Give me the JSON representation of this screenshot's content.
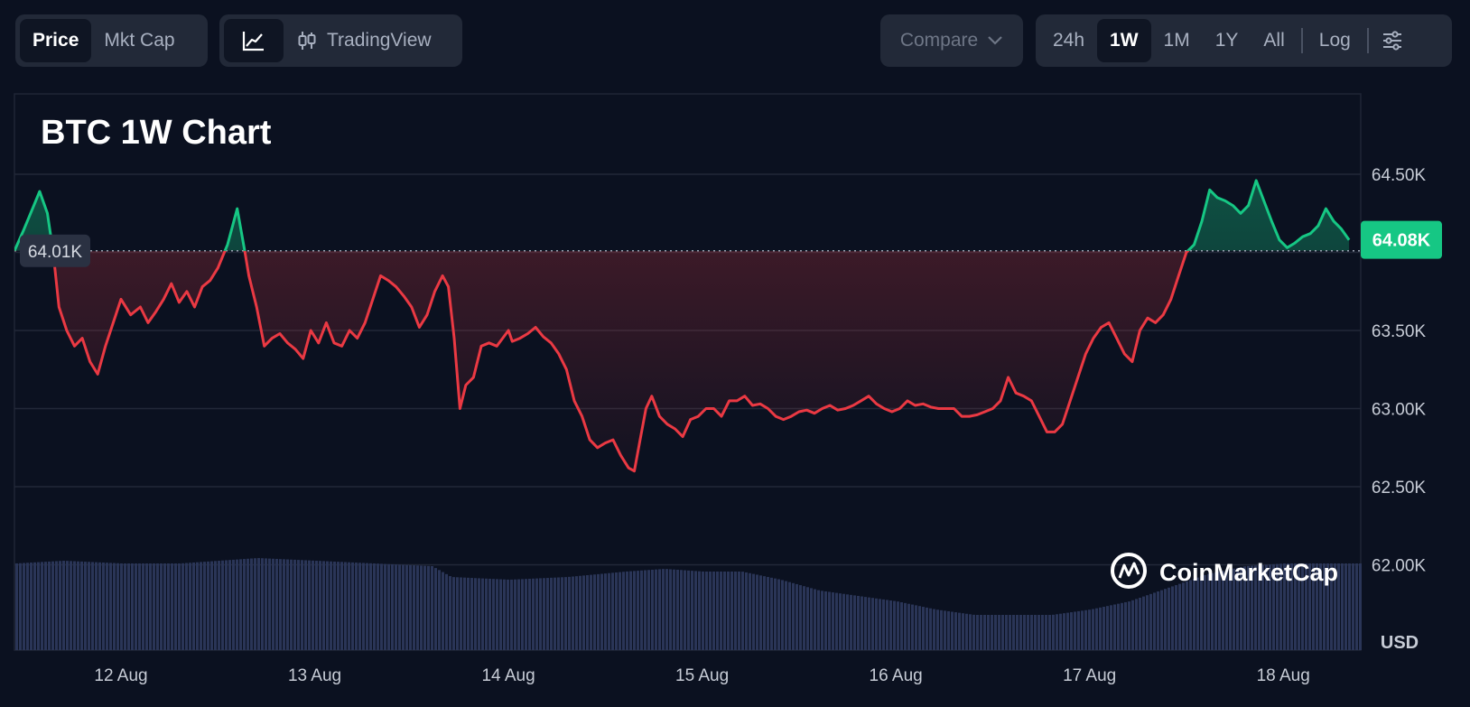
{
  "toolbar": {
    "price_tab": "Price",
    "mktcap_tab": "Mkt Cap",
    "tradingview_label": "TradingView",
    "compare_label": "Compare",
    "ranges": [
      "24h",
      "1W",
      "1M",
      "1Y",
      "All"
    ],
    "active_range": "1W",
    "log_label": "Log",
    "icons": [
      "line-chart-icon",
      "candlestick-icon",
      "chevron-down-icon",
      "settings-sliders-icon"
    ]
  },
  "colors": {
    "up": "#16c784",
    "down": "#ea3943",
    "grid": "#222838",
    "volume": "#2a3557",
    "background": "#0b1120"
  },
  "watermark": "CoinMarketCap",
  "chart_data": {
    "type": "area",
    "title": "BTC 1W Chart",
    "currency_label": "USD",
    "y_ticks": [
      "64.50K",
      "64.00K",
      "63.50K",
      "63.00K",
      "62.50K",
      "62.00K"
    ],
    "ylim": [
      61750,
      64990
    ],
    "x_tick_labels": [
      "12 Aug",
      "13 Aug",
      "14 Aug",
      "15 Aug",
      "16 Aug",
      "17 Aug",
      "18 Aug"
    ],
    "x_days": [
      11.45,
      18.4
    ],
    "baseline": 64010,
    "baseline_label": "64.01K",
    "last_price_label": "64.08K",
    "grid": true,
    "series": [
      {
        "points": [
          [
            11.45,
            64010
          ],
          [
            11.5,
            64150
          ],
          [
            11.55,
            64300
          ],
          [
            11.58,
            64390
          ],
          [
            11.62,
            64250
          ],
          [
            11.65,
            64000
          ],
          [
            11.68,
            63650
          ],
          [
            11.72,
            63500
          ],
          [
            11.76,
            63400
          ],
          [
            11.8,
            63450
          ],
          [
            11.84,
            63300
          ],
          [
            11.88,
            63220
          ],
          [
            11.92,
            63400
          ],
          [
            11.96,
            63550
          ],
          [
            12.0,
            63700
          ],
          [
            12.05,
            63600
          ],
          [
            12.1,
            63650
          ],
          [
            12.14,
            63550
          ],
          [
            12.18,
            63620
          ],
          [
            12.22,
            63700
          ],
          [
            12.26,
            63800
          ],
          [
            12.3,
            63680
          ],
          [
            12.34,
            63750
          ],
          [
            12.38,
            63650
          ],
          [
            12.42,
            63780
          ],
          [
            12.46,
            63820
          ],
          [
            12.5,
            63900
          ],
          [
            12.55,
            64050
          ],
          [
            12.6,
            64280
          ],
          [
            12.64,
            64000
          ],
          [
            12.66,
            63850
          ],
          [
            12.7,
            63650
          ],
          [
            12.74,
            63400
          ],
          [
            12.78,
            63450
          ],
          [
            12.82,
            63480
          ],
          [
            12.86,
            63420
          ],
          [
            12.9,
            63380
          ],
          [
            12.94,
            63320
          ],
          [
            12.98,
            63500
          ],
          [
            13.02,
            63420
          ],
          [
            13.06,
            63550
          ],
          [
            13.1,
            63420
          ],
          [
            13.14,
            63400
          ],
          [
            13.18,
            63500
          ],
          [
            13.22,
            63450
          ],
          [
            13.26,
            63550
          ],
          [
            13.3,
            63700
          ],
          [
            13.34,
            63850
          ],
          [
            13.38,
            63820
          ],
          [
            13.42,
            63780
          ],
          [
            13.46,
            63720
          ],
          [
            13.5,
            63650
          ],
          [
            13.54,
            63520
          ],
          [
            13.58,
            63600
          ],
          [
            13.62,
            63750
          ],
          [
            13.66,
            63850
          ],
          [
            13.69,
            63780
          ],
          [
            13.72,
            63450
          ],
          [
            13.75,
            63000
          ],
          [
            13.78,
            63150
          ],
          [
            13.82,
            63200
          ],
          [
            13.86,
            63400
          ],
          [
            13.9,
            63420
          ],
          [
            13.94,
            63400
          ],
          [
            14.0,
            63500
          ],
          [
            14.02,
            63430
          ],
          [
            14.06,
            63450
          ],
          [
            14.1,
            63480
          ],
          [
            14.14,
            63520
          ],
          [
            14.18,
            63460
          ],
          [
            14.22,
            63420
          ],
          [
            14.26,
            63350
          ],
          [
            14.3,
            63250
          ],
          [
            14.34,
            63050
          ],
          [
            14.38,
            62950
          ],
          [
            14.42,
            62800
          ],
          [
            14.46,
            62750
          ],
          [
            14.5,
            62780
          ],
          [
            14.54,
            62800
          ],
          [
            14.58,
            62700
          ],
          [
            14.62,
            62620
          ],
          [
            14.65,
            62600
          ],
          [
            14.68,
            62800
          ],
          [
            14.71,
            63000
          ],
          [
            14.74,
            63080
          ],
          [
            14.78,
            62950
          ],
          [
            14.82,
            62900
          ],
          [
            14.86,
            62870
          ],
          [
            14.9,
            62820
          ],
          [
            14.94,
            62930
          ],
          [
            14.98,
            62950
          ],
          [
            15.02,
            63000
          ],
          [
            15.06,
            63000
          ],
          [
            15.1,
            62950
          ],
          [
            15.14,
            63050
          ],
          [
            15.18,
            63050
          ],
          [
            15.22,
            63080
          ],
          [
            15.26,
            63020
          ],
          [
            15.3,
            63030
          ],
          [
            15.34,
            63000
          ],
          [
            15.38,
            62950
          ],
          [
            15.42,
            62930
          ],
          [
            15.46,
            62950
          ],
          [
            15.5,
            62980
          ],
          [
            15.54,
            62990
          ],
          [
            15.58,
            62970
          ],
          [
            15.62,
            63000
          ],
          [
            15.66,
            63020
          ],
          [
            15.7,
            62990
          ],
          [
            15.74,
            63000
          ],
          [
            15.78,
            63020
          ],
          [
            15.82,
            63050
          ],
          [
            15.86,
            63080
          ],
          [
            15.9,
            63030
          ],
          [
            15.94,
            63000
          ],
          [
            15.98,
            62980
          ],
          [
            16.02,
            63000
          ],
          [
            16.06,
            63050
          ],
          [
            16.1,
            63020
          ],
          [
            16.14,
            63030
          ],
          [
            16.18,
            63010
          ],
          [
            16.22,
            63000
          ],
          [
            16.26,
            63000
          ],
          [
            16.3,
            63000
          ],
          [
            16.34,
            62950
          ],
          [
            16.38,
            62950
          ],
          [
            16.42,
            62960
          ],
          [
            16.46,
            62980
          ],
          [
            16.5,
            63000
          ],
          [
            16.54,
            63050
          ],
          [
            16.58,
            63200
          ],
          [
            16.62,
            63100
          ],
          [
            16.66,
            63080
          ],
          [
            16.7,
            63050
          ],
          [
            16.74,
            62950
          ],
          [
            16.78,
            62850
          ],
          [
            16.82,
            62850
          ],
          [
            16.86,
            62900
          ],
          [
            16.9,
            63050
          ],
          [
            16.94,
            63200
          ],
          [
            16.98,
            63350
          ],
          [
            17.02,
            63450
          ],
          [
            17.06,
            63520
          ],
          [
            17.1,
            63550
          ],
          [
            17.14,
            63450
          ],
          [
            17.18,
            63350
          ],
          [
            17.22,
            63300
          ],
          [
            17.26,
            63500
          ],
          [
            17.3,
            63580
          ],
          [
            17.34,
            63550
          ],
          [
            17.38,
            63600
          ],
          [
            17.42,
            63700
          ],
          [
            17.46,
            63850
          ],
          [
            17.5,
            64000
          ],
          [
            17.54,
            64050
          ],
          [
            17.58,
            64200
          ],
          [
            17.62,
            64400
          ],
          [
            17.66,
            64350
          ],
          [
            17.7,
            64330
          ],
          [
            17.74,
            64300
          ],
          [
            17.78,
            64250
          ],
          [
            17.82,
            64300
          ],
          [
            17.86,
            64460
          ],
          [
            17.9,
            64330
          ],
          [
            17.94,
            64200
          ],
          [
            17.98,
            64080
          ],
          [
            18.02,
            64030
          ],
          [
            18.06,
            64060
          ],
          [
            18.1,
            64100
          ],
          [
            18.14,
            64120
          ],
          [
            18.18,
            64170
          ],
          [
            18.22,
            64280
          ],
          [
            18.26,
            64200
          ],
          [
            18.3,
            64150
          ],
          [
            18.34,
            64080
          ]
        ]
      }
    ],
    "volume": [
      [
        11.45,
        0.32
      ],
      [
        11.7,
        0.33
      ],
      [
        12.0,
        0.32
      ],
      [
        12.3,
        0.32
      ],
      [
        12.5,
        0.33
      ],
      [
        12.7,
        0.34
      ],
      [
        13.0,
        0.33
      ],
      [
        13.3,
        0.32
      ],
      [
        13.6,
        0.31
      ],
      [
        13.7,
        0.27
      ],
      [
        14.0,
        0.26
      ],
      [
        14.3,
        0.27
      ],
      [
        14.6,
        0.29
      ],
      [
        14.8,
        0.3
      ],
      [
        15.0,
        0.29
      ],
      [
        15.2,
        0.29
      ],
      [
        15.4,
        0.26
      ],
      [
        15.6,
        0.22
      ],
      [
        15.8,
        0.2
      ],
      [
        16.0,
        0.18
      ],
      [
        16.2,
        0.15
      ],
      [
        16.4,
        0.13
      ],
      [
        16.6,
        0.13
      ],
      [
        16.8,
        0.13
      ],
      [
        17.0,
        0.15
      ],
      [
        17.2,
        0.18
      ],
      [
        17.4,
        0.23
      ],
      [
        17.6,
        0.28
      ],
      [
        17.8,
        0.31
      ],
      [
        18.0,
        0.32
      ],
      [
        18.2,
        0.32
      ],
      [
        18.4,
        0.32
      ]
    ]
  }
}
